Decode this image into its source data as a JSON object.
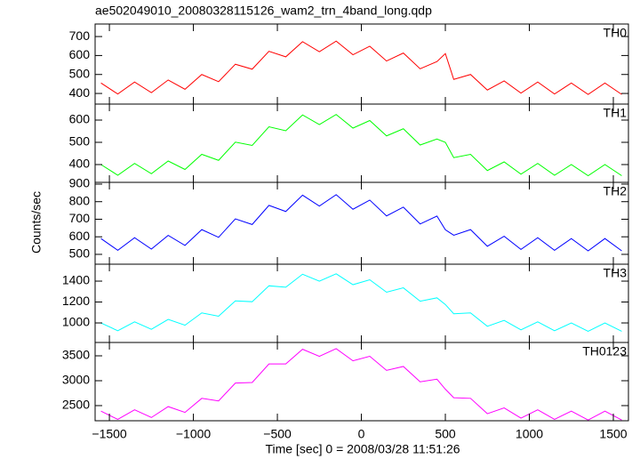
{
  "title": "ae502049010_20080328115126_wam2_trn_4band_long.qdp",
  "ylabel": "Counts/sec",
  "xlabel": "Time [sec] 0 = 2008/03/28 11:51:26",
  "chart_data": [
    {
      "type": "line",
      "x": [
        -1550,
        -1450,
        -1350,
        -1250,
        -1150,
        -1050,
        -950,
        -850,
        -750,
        -650,
        -550,
        -450,
        -350,
        -250,
        -150,
        -50,
        50,
        150,
        250,
        350,
        450,
        500,
        550,
        650,
        750,
        850,
        950,
        1050,
        1150,
        1250,
        1350,
        1450,
        1550
      ],
      "series": [
        {
          "name": "TH0",
          "color": "#ff0000",
          "values": [
            455,
            397,
            460,
            404,
            471,
            422,
            500,
            462,
            554,
            528,
            622,
            593,
            673,
            620,
            676,
            604,
            649,
            571,
            613,
            530,
            568,
            610,
            474,
            500,
            418,
            466,
            402,
            460,
            397,
            455,
            395,
            455,
            395
          ]
        }
      ],
      "xlim": [
        -1585,
        1590
      ],
      "ylim": [
        344,
        766
      ],
      "yticks": [
        400,
        500,
        600,
        700
      ]
    },
    {
      "type": "line",
      "x": [
        -1550,
        -1450,
        -1350,
        -1250,
        -1150,
        -1050,
        -950,
        -850,
        -750,
        -650,
        -550,
        -450,
        -350,
        -250,
        -150,
        -50,
        50,
        150,
        250,
        350,
        450,
        500,
        550,
        650,
        750,
        850,
        950,
        1050,
        1150,
        1250,
        1350,
        1450,
        1550
      ],
      "series": [
        {
          "name": "TH1",
          "color": "#00ff00",
          "values": [
            400,
            352,
            405,
            359,
            416,
            378,
            446,
            419,
            501,
            486,
            570,
            552,
            623,
            580,
            625,
            564,
            598,
            529,
            561,
            488,
            515,
            500,
            431,
            446,
            373,
            412,
            357,
            405,
            352,
            400,
            350,
            400,
            350
          ]
        }
      ],
      "xlim": [
        -1585,
        1590
      ],
      "ylim": [
        320,
        672
      ],
      "yticks": [
        400,
        500,
        600
      ]
    },
    {
      "type": "line",
      "x": [
        -1550,
        -1450,
        -1350,
        -1250,
        -1150,
        -1050,
        -950,
        -850,
        -750,
        -650,
        -550,
        -450,
        -350,
        -250,
        -150,
        -50,
        50,
        150,
        250,
        350,
        450,
        500,
        550,
        650,
        750,
        850,
        950,
        1050,
        1150,
        1250,
        1350,
        1450,
        1550
      ],
      "series": [
        {
          "name": "TH2",
          "color": "#0000ff",
          "values": [
            590,
            523,
            595,
            530,
            608,
            551,
            641,
            597,
            702,
            670,
            779,
            744,
            837,
            775,
            840,
            757,
            809,
            719,
            769,
            673,
            718,
            640,
            609,
            641,
            546,
            603,
            528,
            595,
            523,
            590,
            520,
            590,
            520
          ]
        }
      ],
      "xlim": [
        -1585,
        1590
      ],
      "ylim": [
        444,
        910
      ],
      "yticks": [
        500,
        600,
        700,
        800,
        900
      ]
    },
    {
      "type": "line",
      "x": [
        -1550,
        -1450,
        -1350,
        -1250,
        -1150,
        -1050,
        -950,
        -850,
        -750,
        -650,
        -550,
        -450,
        -350,
        -250,
        -150,
        -50,
        50,
        150,
        250,
        350,
        450,
        500,
        550,
        650,
        750,
        850,
        950,
        1050,
        1150,
        1250,
        1350,
        1450,
        1550
      ],
      "series": [
        {
          "name": "TH3",
          "color": "#00ffff",
          "values": [
            1000,
            925,
            1010,
            939,
            1034,
            978,
            1096,
            1064,
            1211,
            1203,
            1355,
            1342,
            1466,
            1400,
            1470,
            1366,
            1413,
            1294,
            1336,
            1208,
            1240,
            1176,
            1088,
            1096,
            968,
            1024,
            934,
            1010,
            925,
            1000,
            920,
            1000,
            920
          ]
        }
      ],
      "xlim": [
        -1585,
        1590
      ],
      "ylim": [
        813,
        1562
      ],
      "yticks": [
        1000,
        1200,
        1400
      ]
    },
    {
      "type": "line",
      "x": [
        -1550,
        -1450,
        -1350,
        -1250,
        -1150,
        -1050,
        -950,
        -850,
        -750,
        -650,
        -550,
        -450,
        -350,
        -250,
        -150,
        -50,
        50,
        150,
        250,
        350,
        450,
        500,
        550,
        650,
        750,
        850,
        950,
        1050,
        1150,
        1250,
        1350,
        1450,
        1550
      ],
      "series": [
        {
          "name": "TH0123",
          "color": "#ff00ff",
          "values": [
            2390,
            2223,
            2416,
            2261,
            2480,
            2364,
            2646,
            2594,
            2953,
            2965,
            3337,
            3336,
            3632,
            3490,
            3644,
            3400,
            3491,
            3208,
            3286,
            2978,
            3030,
            2830,
            2658,
            2646,
            2338,
            2454,
            2248,
            2416,
            2223,
            2390,
            2210,
            2390,
            2210
          ]
        }
      ],
      "xlim": [
        -1585,
        1590
      ],
      "ylim": [
        2196,
        3768
      ],
      "yticks": [
        2500,
        3000,
        3500
      ],
      "xticks": [
        {
          "value": -1500,
          "label": "−1500"
        },
        {
          "value": -1000,
          "label": "−1000"
        },
        {
          "value": -500,
          "label": "−500"
        },
        0,
        500,
        1000,
        1500
      ]
    }
  ]
}
